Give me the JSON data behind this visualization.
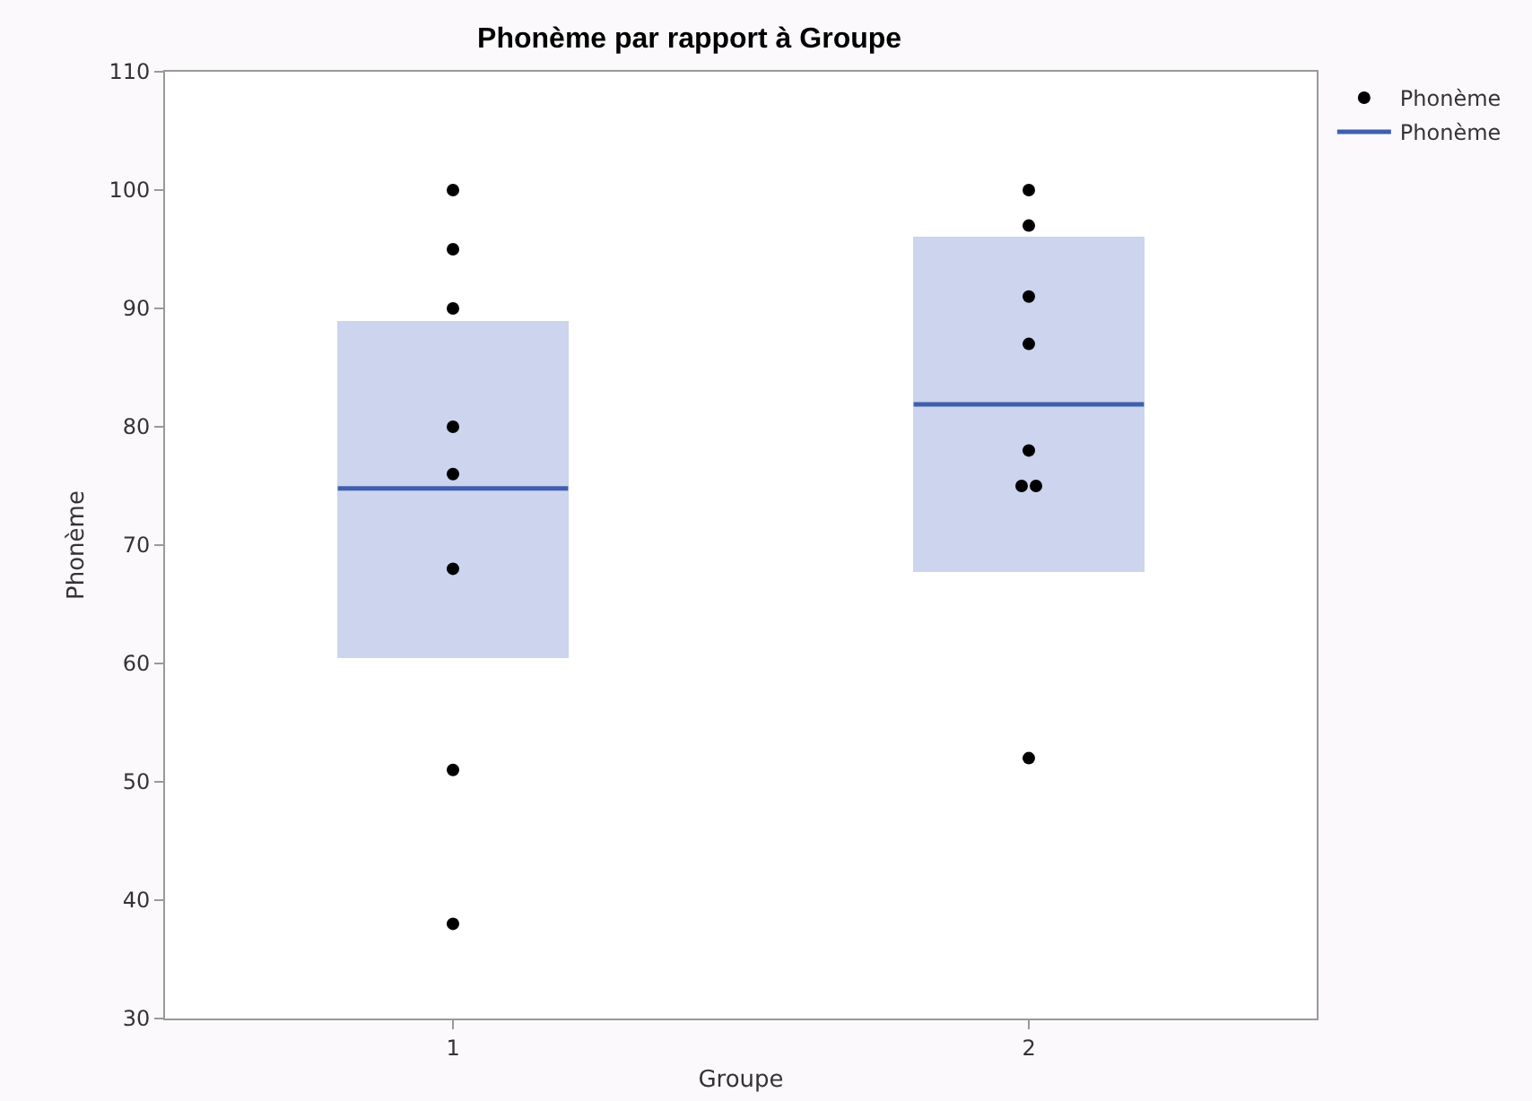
{
  "chart_data": {
    "type": "scatter",
    "title": "Phonème par rapport à Groupe",
    "xlabel": "Groupe",
    "ylabel": "Phonème",
    "categories": [
      "1",
      "2"
    ],
    "ylim": [
      30,
      110
    ],
    "yticks": [
      30,
      40,
      50,
      60,
      70,
      80,
      90,
      100,
      110
    ],
    "grid": false,
    "legend": "top right",
    "series": [
      {
        "type": "bar",
        "color": "#ccd4ee",
        "base": [
          60.5,
          67.7
        ],
        "values": [
          28.5,
          28.3
        ]
      },
      {
        "name": "Phonème",
        "color": "#000000",
        "x": [
          "1",
          "1",
          "1",
          "1",
          "1",
          "1",
          "1",
          "1",
          "2",
          "2",
          "2",
          "2",
          "2",
          "2",
          "2",
          "2"
        ],
        "values": [
          100,
          95,
          90,
          80,
          76,
          68,
          51,
          38,
          100,
          97,
          91,
          87,
          78,
          75,
          75,
          52
        ]
      }
    ],
    "marker": "circle",
    "ref_lines": [
      {
        "axis": "y",
        "value": 74.8,
        "label": "Phonème",
        "color": "#3f5fae",
        "line_style": "solid"
      },
      {
        "axis": "y",
        "value": 81.9,
        "color": "#3f5fae",
        "line_style": "solid"
      }
    ]
  }
}
